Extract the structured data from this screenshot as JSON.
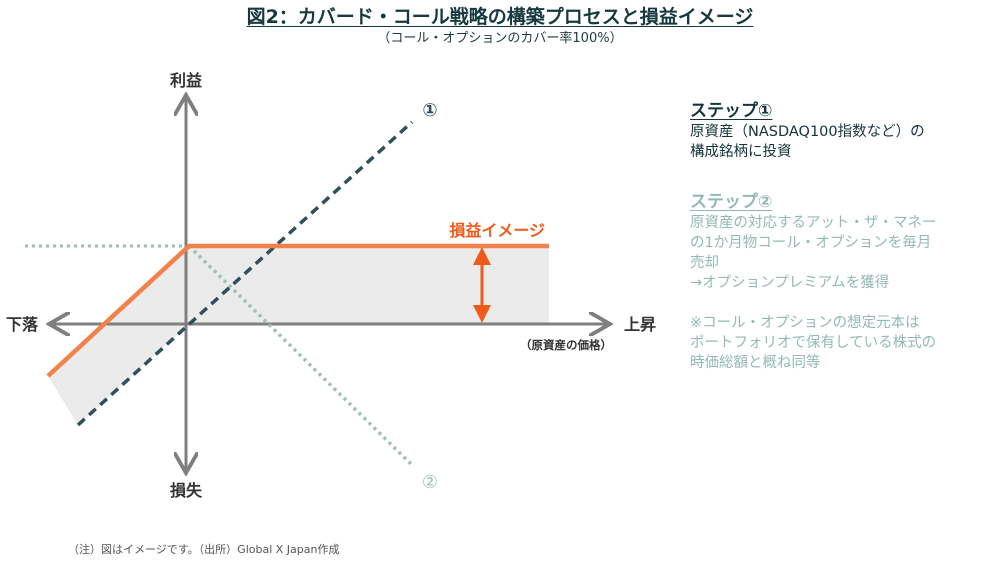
{
  "header": {
    "title": "図2：カバード・コール戦略の構築プロセスと損益イメージ",
    "subtitle": "（コール・オプションのカバー率100%）"
  },
  "diagram": {
    "axis_y_top": "利益",
    "axis_y_bottom": "損失",
    "axis_x_left": "下落",
    "axis_x_right": "上昇",
    "axis_x_note": "（原資産の価格）",
    "line_marker_1": "①",
    "line_marker_2": "②",
    "pnl_label": "損益イメージ",
    "colors": {
      "axis": "#7f7f7f",
      "underlying_line": "#2f4f5a",
      "call_line": "#9cbfba",
      "pnl_line": "#f4804a",
      "pnl_label": "#f05a1a",
      "shade": "#e9e9e9"
    }
  },
  "steps": {
    "step1": {
      "title": "ステップ①",
      "lines": [
        "原資産（NASDAQ100指数など）の",
        "構成銘柄に投資"
      ]
    },
    "step2": {
      "title": "ステップ②",
      "lines": [
        "原資産の対応するアット・ザ・マネー",
        "の1か月物コール・オプションを毎月",
        "売却",
        "→オプションプレミアムを獲得"
      ],
      "note_lines": [
        "※コール・オプションの想定元本は",
        "ポートフォリオで保有している株式の",
        "時価総額と概ね同等"
      ]
    }
  },
  "footnote": "（注）図はイメージです。（出所）Global X Japan作成"
}
